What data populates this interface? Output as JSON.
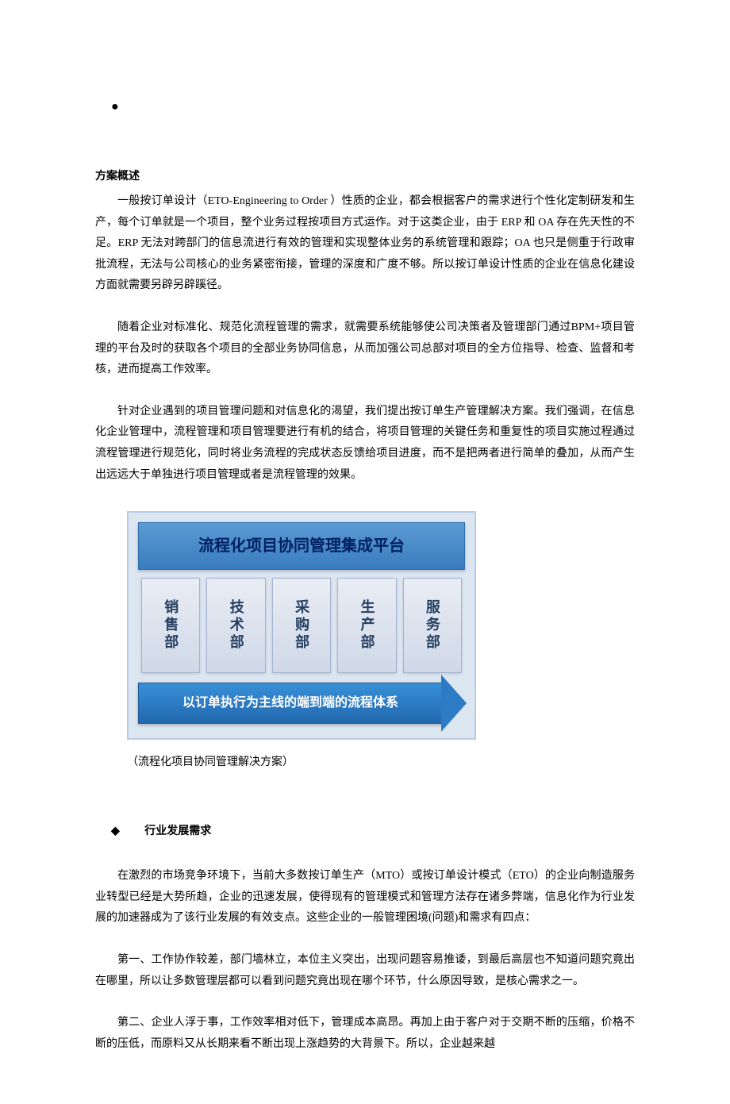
{
  "doc": {
    "sectionTitle": "方案概述",
    "p1": "一般按订单设计（ETO-Engineering to Order ）性质的企业，都会根据客户的需求进行个性化定制研发和生产，每个订单就是一个项目，整个业务过程按项目方式运作。对于这类企业，由于 ERP 和 OA 存在先天性的不足。ERP 无法对跨部门的信息流进行有效的管理和实现整体业务的系统管理和跟踪；OA 也只是侧重于行政审批流程，无法与公司核心的业务紧密衔接，管理的深度和广度不够。所以按订单设计性质的企业在信息化建设方面就需要另辟另辟蹊径。",
    "p2": "随着企业对标准化、规范化流程管理的需求，就需要系统能够使公司决策者及管理部门通过BPM+项目管理的平台及时的获取各个项目的全部业务协同信息，从而加强公司总部对项目的全方位指导、检查、监督和考核，进而提高工作效率。",
    "p3": "针对企业遇到的项目管理问题和对信息化的渴望，我们提出按订单生产管理解决方案。我们强调，在信息化企业管理中，流程管理和项目管理要进行有机的结合，将项目管理的关键任务和重复性的项目实施过程通过流程管理进行规范化，同时将业务流程的完成状态反馈给项目进度，而不是把两者进行简单的叠加，从而产生出远远大于单独进行项目管理或者是流程管理的效果。",
    "diagram": {
      "header": "流程化项目协同管理集成平台",
      "pillars": [
        "销售部",
        "技术部",
        "采购部",
        "生产部",
        "服务部"
      ],
      "arrowText": "以订单执行为主线的端到端的流程体系",
      "caption": "（流程化项目协同管理解决方案）",
      "colors": {
        "background": "#dce6f1",
        "headerGradientTop": "#5b9bd5",
        "headerGradientBottom": "#3a7bbd",
        "headerTextColor": "#002060",
        "pillarGradientTop": "#e9edf4",
        "pillarGradientBottom": "#d0d8e8",
        "pillarTextColor": "#254061",
        "arrowGradientTop": "#3891d6",
        "arrowGradientBottom": "#2268ad",
        "arrowTextColor": "#ffffff"
      }
    },
    "subsectionTitle": "行业发展需求",
    "p4": "在激烈的市场竞争环境下，当前大多数按订单生产（MTO）或按订单设计模式（ETO）的企业向制造服务业转型已经是大势所趋，企业的迅速发展，使得现有的管理模式和管理方法存在诸多弊端，信息化作为行业发展的加速器成为了该行业发展的有效支点。这些企业的一般管理困境(问题)和需求有四点：",
    "p5": "第一、工作协作较差，部门墙林立，本位主义突出，出现问题容易推诿，到最后高层也不知道问题究竟出在哪里，所以让多数管理层都可以看到问题究竟出现在哪个环节，什么原因导致，是核心需求之一。",
    "p6": "第二、企业人浮于事，工作效率相对低下，管理成本高昂。再加上由于客户对于交期不断的压缩，价格不断的压低，而原料又从长期来看不断出现上涨趋势的大背景下。所以，企业越来越"
  }
}
